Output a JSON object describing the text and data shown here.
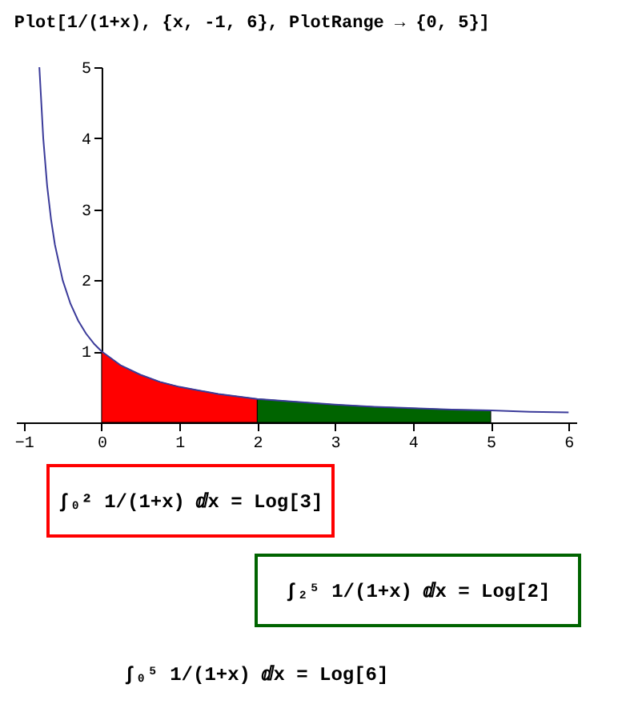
{
  "chart_data": {
    "type": "line",
    "title": "Plot[1/(1+x), {x, -1, 6}, PlotRange → {0, 5}]",
    "xlim": [
      -1.1,
      6.1
    ],
    "ylim": [
      0,
      5
    ],
    "xticks": [
      -1,
      0,
      1,
      2,
      3,
      4,
      5,
      6
    ],
    "yticks": [
      1,
      2,
      3,
      4,
      5
    ],
    "grid": false,
    "series": [
      {
        "color": "#3b3b9a",
        "x": [
          -0.8,
          -0.75,
          -0.7,
          -0.65,
          -0.6,
          -0.5,
          -0.4,
          -0.3,
          -0.2,
          -0.1,
          0,
          0.25,
          0.5,
          0.75,
          1,
          1.5,
          2,
          2.5,
          3,
          3.5,
          4,
          4.5,
          5,
          5.5,
          6
        ],
        "values": [
          5,
          4,
          3.33,
          2.86,
          2.5,
          2,
          1.67,
          1.43,
          1.25,
          1.11,
          1,
          0.8,
          0.67,
          0.57,
          0.5,
          0.4,
          0.33,
          0.29,
          0.25,
          0.22,
          0.2,
          0.18,
          0.17,
          0.15,
          0.14
        ]
      },
      {
        "type": "area",
        "color": "#ff0000",
        "x": [
          0,
          0.25,
          0.5,
          0.75,
          1,
          1.5,
          2
        ],
        "values": [
          1,
          0.8,
          0.67,
          0.57,
          0.5,
          0.4,
          0.33
        ]
      },
      {
        "type": "area",
        "color": "#006400",
        "x": [
          2,
          2.5,
          3,
          3.5,
          4,
          4.5,
          5
        ],
        "values": [
          0.33,
          0.29,
          0.25,
          0.22,
          0.2,
          0.18,
          0.17
        ]
      }
    ],
    "annotations": [
      "∫₀² 1/(1+x) ⅆx = Log[3]",
      "∫₂⁵ 1/(1+x) ⅆx = Log[2]",
      "∫₀⁵ 1/(1+x) ⅆx = Log[6]"
    ]
  }
}
